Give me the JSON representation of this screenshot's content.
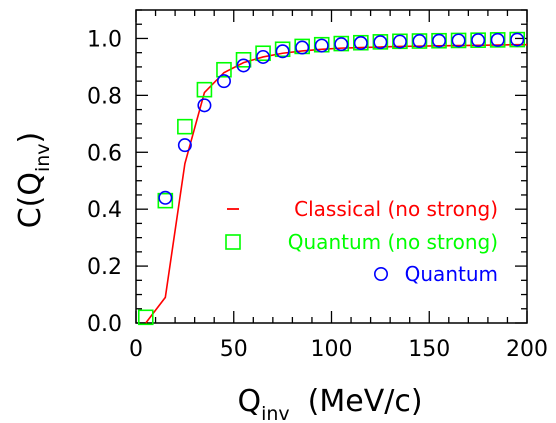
{
  "chart_data": {
    "type": "scatter",
    "title": "",
    "xlabel": {
      "main": "Q",
      "sub": "inv",
      "unit": "(MeV/c)"
    },
    "ylabel": {
      "main": "C(Q",
      "sub": "inv",
      "close": ")"
    },
    "xlim": [
      0,
      200
    ],
    "ylim": [
      0,
      1.1
    ],
    "x_ticks": [
      0,
      50,
      100,
      150,
      200
    ],
    "x_tick_labels": [
      "0",
      "50",
      "100",
      "150",
      "200"
    ],
    "y_ticks": [
      0,
      0.2,
      0.4,
      0.6,
      0.8,
      1.0
    ],
    "y_tick_labels": [
      "0.0",
      "0.2",
      "0.4",
      "0.6",
      "0.8",
      "1.0"
    ],
    "grid": false,
    "legend_position": "center-right",
    "series": [
      {
        "name": "Classical (no strong)",
        "kind": "line",
        "color": "#ff0000",
        "x": [
          5,
          15,
          25,
          35,
          45,
          55,
          65,
          75,
          85,
          95,
          105,
          115,
          125,
          135,
          145,
          155,
          165,
          175,
          185,
          195,
          200
        ],
        "y": [
          0.0,
          0.09,
          0.56,
          0.81,
          0.88,
          0.915,
          0.935,
          0.948,
          0.956,
          0.962,
          0.966,
          0.968,
          0.97,
          0.972,
          0.973,
          0.974,
          0.975,
          0.976,
          0.977,
          0.978,
          0.978
        ]
      },
      {
        "name": "Quantum (no strong)",
        "kind": "square",
        "color": "#00ff00",
        "x": [
          5,
          15,
          25,
          35,
          45,
          55,
          65,
          75,
          85,
          95,
          105,
          115,
          125,
          135,
          145,
          155,
          165,
          175,
          185,
          195
        ],
        "y": [
          0.02,
          0.43,
          0.69,
          0.82,
          0.89,
          0.925,
          0.948,
          0.962,
          0.972,
          0.978,
          0.982,
          0.985,
          0.988,
          0.99,
          0.991,
          0.992,
          0.993,
          0.994,
          0.995,
          0.996
        ]
      },
      {
        "name": "Quantum",
        "kind": "circle",
        "color": "#0000ff",
        "x": [
          15,
          25,
          35,
          45,
          55,
          65,
          75,
          85,
          95,
          105,
          115,
          125,
          135,
          145,
          155,
          165,
          175,
          185,
          195
        ],
        "y": [
          0.44,
          0.625,
          0.765,
          0.85,
          0.905,
          0.935,
          0.955,
          0.968,
          0.975,
          0.98,
          0.984,
          0.987,
          0.989,
          0.991,
          0.992,
          0.993,
          0.994,
          0.995,
          0.996
        ]
      }
    ]
  }
}
